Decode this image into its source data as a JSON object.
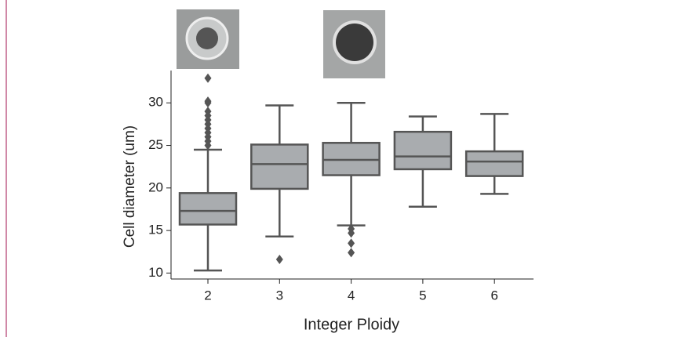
{
  "chart_data": {
    "type": "box",
    "x_label": "Integer Ploidy",
    "y_label": "Cell diameter (um)",
    "categories": [
      "2",
      "3",
      "4",
      "5",
      "6"
    ],
    "boxes": [
      {
        "low": 10.3,
        "q1": 15.7,
        "median": 17.3,
        "q3": 19.4,
        "high": 24.5,
        "outliers": [
          25,
          25.5,
          26,
          26.5,
          27,
          27.5,
          28,
          28.5,
          29,
          30,
          30.2,
          32.9
        ]
      },
      {
        "low": 14.3,
        "q1": 19.9,
        "median": 22.8,
        "q3": 25.1,
        "high": 29.7,
        "outliers": [
          11.6
        ]
      },
      {
        "low": 15.6,
        "q1": 21.5,
        "median": 23.3,
        "q3": 25.3,
        "high": 30.0,
        "outliers": [
          15.2,
          14.7,
          13.5,
          12.4
        ]
      },
      {
        "low": 17.8,
        "q1": 22.2,
        "median": 23.7,
        "q3": 26.6,
        "high": 28.4,
        "outliers": []
      },
      {
        "low": 19.3,
        "q1": 21.4,
        "median": 23.1,
        "q3": 24.3,
        "high": 28.7,
        "outliers": []
      }
    ],
    "color": "#a9acaf",
    "edge_color": "#555555",
    "ylim": [
      9.3,
      33.8
    ],
    "yticks": [
      10,
      15,
      20,
      25,
      30
    ]
  }
}
